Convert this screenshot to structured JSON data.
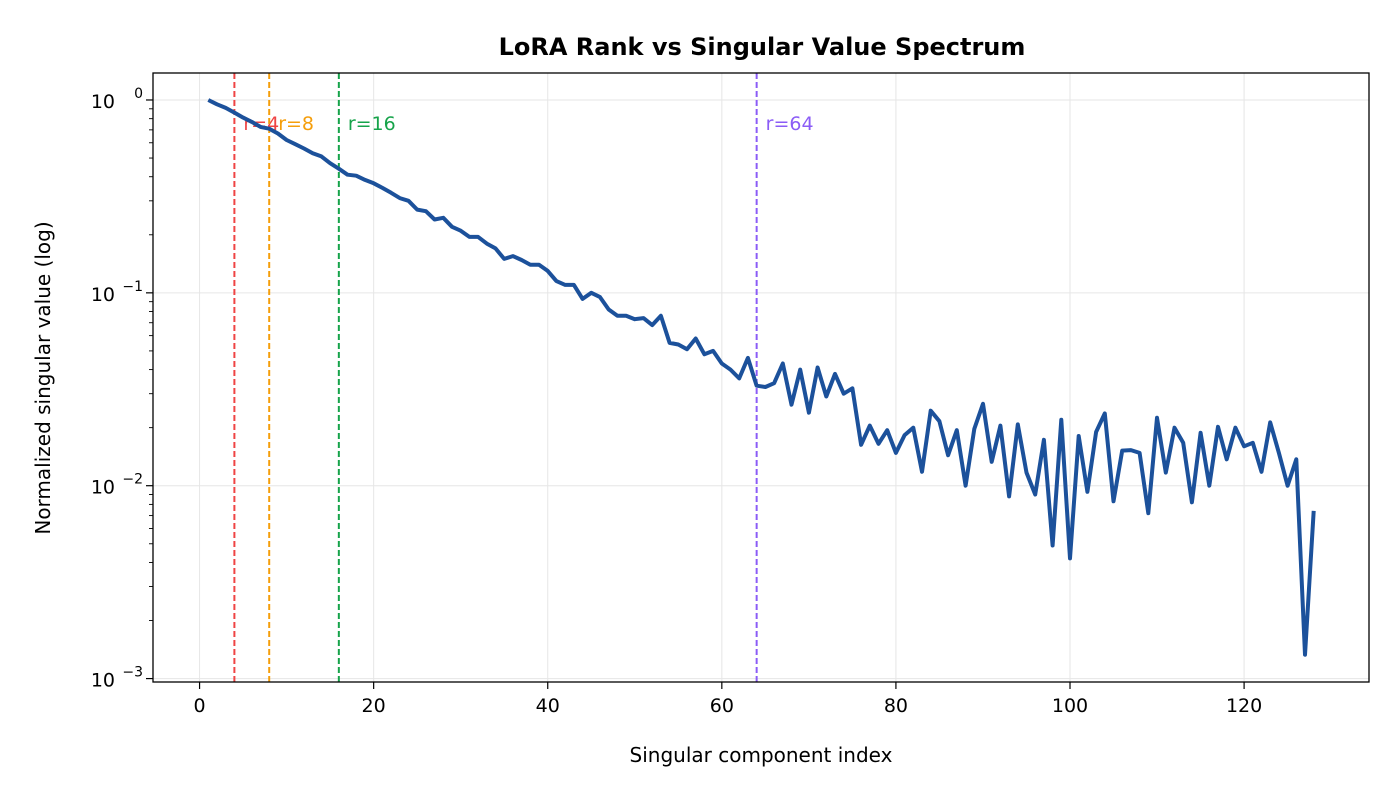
{
  "chart_data": {
    "type": "line",
    "title": "LoRA Rank vs Singular Value Spectrum",
    "xlabel": "Singular component index",
    "ylabel": "Normalized singular value (log)",
    "xlim": [
      -5.35,
      134.35
    ],
    "ylim": [
      0.00096,
      1.38
    ],
    "yscale": "log",
    "grid": true,
    "xticks": [
      0,
      20,
      40,
      60,
      80,
      100,
      120
    ],
    "yticks": [
      {
        "base": "10",
        "exp": "0",
        "value": 1
      },
      {
        "base": "10",
        "exp": "−1",
        "value": 0.1
      },
      {
        "base": "10",
        "exp": "−2",
        "value": 0.01
      },
      {
        "base": "10",
        "exp": "−3",
        "value": 0.001
      }
    ],
    "line_color": "#1c519b",
    "series": [
      {
        "x": [
          1,
          2,
          3,
          4,
          5,
          6,
          7,
          8,
          9,
          10,
          11,
          12,
          13,
          14,
          15,
          16,
          17,
          18,
          19,
          20,
          21,
          22,
          23,
          24,
          25,
          26,
          27,
          28,
          29,
          30,
          31,
          32,
          33,
          34,
          35,
          36,
          37,
          38,
          39,
          40,
          41,
          42,
          43,
          44,
          45,
          46,
          47,
          48,
          49,
          50,
          51,
          52,
          53,
          54,
          55,
          56,
          57,
          58,
          59,
          60,
          61,
          62,
          63,
          64,
          65,
          66,
          67,
          68,
          69,
          70,
          71,
          72,
          73,
          74,
          75,
          76,
          77,
          78,
          79,
          80,
          81,
          82,
          83,
          84,
          85,
          86,
          87,
          88,
          89,
          90,
          91,
          92,
          93,
          94,
          95,
          96,
          97,
          98,
          99,
          100,
          101,
          102,
          103,
          104,
          105,
          106,
          107,
          108,
          109,
          110,
          111,
          112,
          113,
          114,
          115,
          116,
          117,
          118,
          119,
          120,
          121,
          122,
          123,
          124,
          125,
          126,
          127,
          128
        ],
        "y": [
          1.0,
          0.95,
          0.91,
          0.86,
          0.81,
          0.77,
          0.725,
          0.71,
          0.67,
          0.62,
          0.59,
          0.56,
          0.53,
          0.51,
          0.47,
          0.44,
          0.41,
          0.405,
          0.385,
          0.37,
          0.35,
          0.33,
          0.31,
          0.3,
          0.27,
          0.265,
          0.24,
          0.245,
          0.22,
          0.21,
          0.195,
          0.195,
          0.18,
          0.17,
          0.15,
          0.155,
          0.148,
          0.14,
          0.14,
          0.13,
          0.115,
          0.11,
          0.11,
          0.093,
          0.1,
          0.095,
          0.082,
          0.076,
          0.076,
          0.073,
          0.074,
          0.068,
          0.076,
          0.055,
          0.054,
          0.051,
          0.058,
          0.048,
          0.05,
          0.043,
          0.04,
          0.036,
          0.046,
          0.033,
          0.0325,
          0.034,
          0.043,
          0.0263,
          0.04,
          0.0239,
          0.041,
          0.029,
          0.038,
          0.03,
          0.032,
          0.0163,
          0.0205,
          0.0165,
          0.0194,
          0.0148,
          0.0183,
          0.02,
          0.0118,
          0.0245,
          0.0216,
          0.0144,
          0.0194,
          0.01,
          0.0197,
          0.0266,
          0.0133,
          0.0205,
          0.0088,
          0.0208,
          0.0117,
          0.009,
          0.0173,
          0.0049,
          0.022,
          0.0042,
          0.0181,
          0.0093,
          0.019,
          0.0237,
          0.0083,
          0.0152,
          0.0153,
          0.0148,
          0.0072,
          0.0225,
          0.0117,
          0.02,
          0.0167,
          0.0082,
          0.0188,
          0.01,
          0.0202,
          0.0137,
          0.02,
          0.016,
          0.0167,
          0.0118,
          0.0213,
          0.0148,
          0.01,
          0.0137,
          0.00133,
          0.0074
        ]
      }
    ],
    "annotations": [
      {
        "x": 4,
        "label": "r=4",
        "color": "#ef4444"
      },
      {
        "x": 8,
        "label": "r=8",
        "color": "#f59e0b"
      },
      {
        "x": 16,
        "label": "r=16",
        "color": "#16a34a"
      },
      {
        "x": 64,
        "label": "r=64",
        "color": "#8b5cf6"
      }
    ]
  }
}
